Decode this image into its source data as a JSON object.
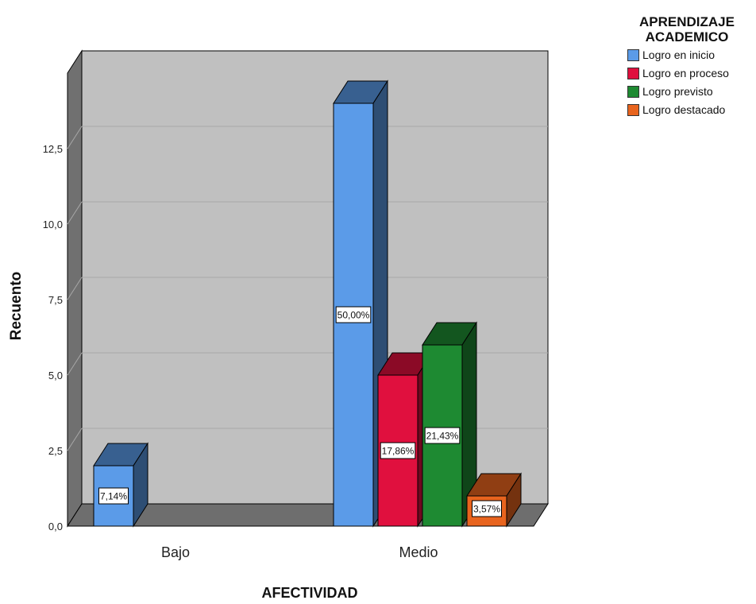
{
  "chart_data": {
    "type": "bar",
    "style": "3d-clustered",
    "xlabel": "AFECTIVIDAD",
    "ylabel": "Recuento",
    "categories": [
      "Bajo",
      "Medio"
    ],
    "yticks": [
      "0,0",
      "2,5",
      "5,0",
      "7,5",
      "10,0",
      "12,5"
    ],
    "ylim": [
      0,
      15
    ],
    "grid": true,
    "legend_position": "top-right",
    "legend_title_lines": [
      "APRENDIZAJE",
      "ACADEMICO"
    ],
    "series": [
      {
        "name": "Logro en inicio",
        "color": "#5b9be8",
        "values": [
          2,
          14
        ],
        "labels": [
          "7,14%",
          "50,00%"
        ]
      },
      {
        "name": "Logro en proceso",
        "color": "#e0103e",
        "values": [
          0,
          5
        ],
        "labels": [
          "",
          "17,86%"
        ]
      },
      {
        "name": "Logro previsto",
        "color": "#1e8a32",
        "values": [
          0,
          6
        ],
        "labels": [
          "",
          "21,43%"
        ]
      },
      {
        "name": "Logro destacado",
        "color": "#e8641e",
        "values": [
          0,
          1
        ],
        "labels": [
          "",
          "3,57%"
        ]
      }
    ]
  }
}
